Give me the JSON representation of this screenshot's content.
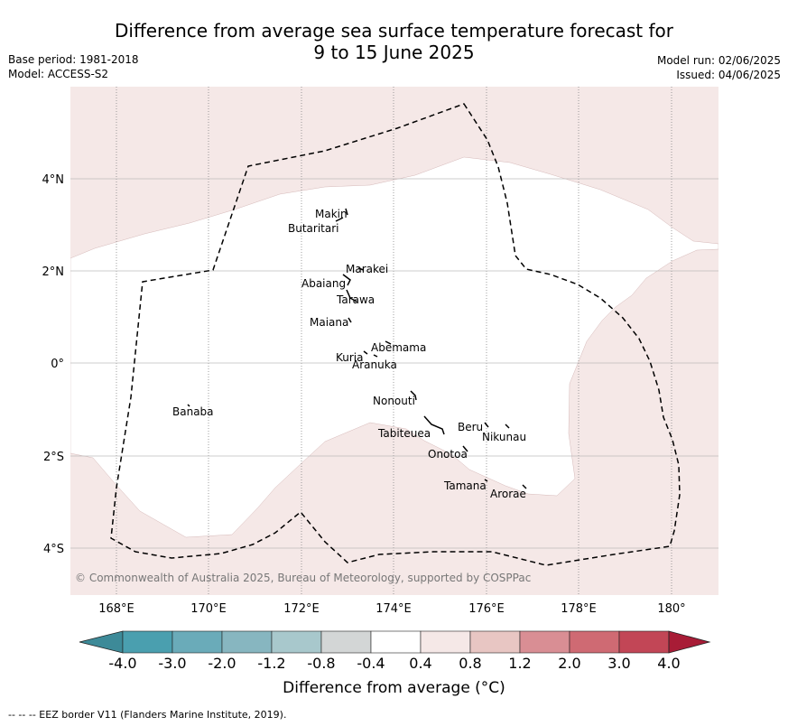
{
  "header": {
    "title_line1": "Difference from average sea surface temperature forecast for",
    "title_line2": "9 to 15 June 2025",
    "base_period": "Base period: 1981-2018",
    "model": "Model: ACCESS-S2",
    "model_run": "Model run: 02/06/2025",
    "issued": "Issued: 04/06/2025"
  },
  "map": {
    "lon_labels": [
      "168°E",
      "170°E",
      "172°E",
      "174°E",
      "176°E",
      "178°E",
      "180°"
    ],
    "lat_labels": [
      "4°N",
      "2°N",
      "0°",
      "2°S",
      "4°S"
    ],
    "copyright": "© Commonwealth of Australia 2025, Bureau of Meteorology, supported by COSPPac",
    "colors": {
      "anomaly_0_4_to_0_8": "#f5e8e7",
      "near_average": "#ffffff",
      "eez_border": "#000000"
    },
    "islands": [
      {
        "name": "Makin"
      },
      {
        "name": "Butaritari"
      },
      {
        "name": "Marakei"
      },
      {
        "name": "Abaiang"
      },
      {
        "name": "Tarawa"
      },
      {
        "name": "Maiana"
      },
      {
        "name": "Abemama"
      },
      {
        "name": "Kuria"
      },
      {
        "name": "Aranuka"
      },
      {
        "name": "Banaba"
      },
      {
        "name": "Nonouti"
      },
      {
        "name": "Beru"
      },
      {
        "name": "Tabiteuea"
      },
      {
        "name": "Nikunau"
      },
      {
        "name": "Onotoa"
      },
      {
        "name": "Tamana"
      },
      {
        "name": "Arorae"
      }
    ]
  },
  "colorbar": {
    "ticks": [
      "-4.0",
      "-3.0",
      "-2.0",
      "-1.2",
      "-0.8",
      "-0.4",
      "0.4",
      "0.8",
      "1.2",
      "2.0",
      "3.0",
      "4.0"
    ],
    "colors": [
      "#4a9faf",
      "#6aabb9",
      "#87b6c0",
      "#a8c8cc",
      "#d3d6d6",
      "#ffffff",
      "#f5e8e7",
      "#e8c6c3",
      "#d98e94",
      "#cf6a73",
      "#c24656"
    ],
    "under_color": "#3d8a98",
    "over_color": "#a81c36",
    "label": "Difference from average (°C)"
  },
  "footnote": "--  --  -- EEZ border V11 (Flanders Marine Institute, 2019)."
}
